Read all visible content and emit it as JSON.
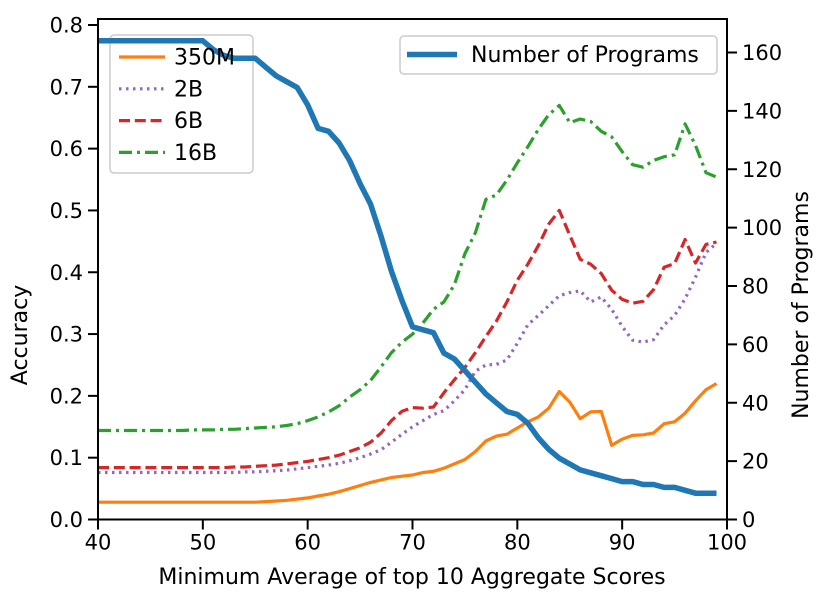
{
  "chart_data": {
    "type": "line",
    "title": "",
    "xlabel": "Minimum Average of top 10 Aggregate Scores",
    "ylabel_left": "Accuracy",
    "ylabel_right": "Number of Programs",
    "xlim": [
      40,
      100
    ],
    "ylim_left": [
      0.0,
      0.8
    ],
    "ylim_right": [
      0,
      160
    ],
    "grid": false,
    "x_ticks": [
      40,
      50,
      60,
      70,
      80,
      90,
      100
    ],
    "y_ticks_left": [
      "0.0",
      "0.1",
      "0.2",
      "0.3",
      "0.4",
      "0.5",
      "0.6",
      "0.7",
      "0.8"
    ],
    "y_ticks_right": [
      0,
      20,
      40,
      60,
      80,
      100,
      120,
      140,
      160
    ],
    "axis_color_right": "#1f77b4",
    "legend_models_position": "upper left",
    "legend_programs_position": "upper right",
    "x": [
      40,
      41,
      42,
      43,
      44,
      45,
      46,
      47,
      48,
      49,
      50,
      51,
      52,
      53,
      54,
      55,
      56,
      57,
      58,
      59,
      60,
      61,
      62,
      63,
      64,
      65,
      66,
      67,
      68,
      69,
      70,
      71,
      72,
      73,
      74,
      75,
      76,
      77,
      78,
      79,
      80,
      81,
      82,
      83,
      84,
      85,
      86,
      87,
      88,
      89,
      90,
      91,
      92,
      93,
      94,
      95,
      96,
      97,
      98,
      99
    ],
    "series": [
      {
        "name": "350M",
        "color": "#ff7f0e",
        "style": "solid",
        "axis": "left",
        "linewidth": 3.2,
        "values": [
          0.028,
          0.028,
          0.028,
          0.028,
          0.028,
          0.028,
          0.028,
          0.028,
          0.028,
          0.028,
          0.028,
          0.028,
          0.028,
          0.028,
          0.028,
          0.028,
          0.029,
          0.03,
          0.031,
          0.033,
          0.035,
          0.038,
          0.041,
          0.045,
          0.05,
          0.055,
          0.06,
          0.064,
          0.068,
          0.07,
          0.072,
          0.076,
          0.078,
          0.083,
          0.09,
          0.097,
          0.11,
          0.127,
          0.135,
          0.138,
          0.148,
          0.158,
          0.166,
          0.18,
          0.207,
          0.19,
          0.163,
          0.174,
          0.175,
          0.12,
          0.13,
          0.136,
          0.137,
          0.14,
          0.155,
          0.158,
          0.172,
          0.192,
          0.21,
          0.22
        ]
      },
      {
        "name": "2B",
        "color": "#9467bd",
        "style": "dotted",
        "axis": "left",
        "linewidth": 3.2,
        "values": [
          0.076,
          0.076,
          0.076,
          0.076,
          0.076,
          0.076,
          0.076,
          0.076,
          0.076,
          0.076,
          0.076,
          0.076,
          0.076,
          0.076,
          0.077,
          0.077,
          0.078,
          0.079,
          0.08,
          0.082,
          0.084,
          0.086,
          0.088,
          0.091,
          0.095,
          0.1,
          0.106,
          0.113,
          0.125,
          0.138,
          0.15,
          0.16,
          0.17,
          0.176,
          0.192,
          0.21,
          0.24,
          0.25,
          0.251,
          0.258,
          0.285,
          0.315,
          0.33,
          0.346,
          0.362,
          0.367,
          0.37,
          0.352,
          0.36,
          0.34,
          0.312,
          0.29,
          0.287,
          0.291,
          0.315,
          0.33,
          0.357,
          0.392,
          0.432,
          0.447
        ]
      },
      {
        "name": "6B",
        "color": "#d62728",
        "style": "dashed",
        "axis": "left",
        "linewidth": 3.2,
        "values": [
          0.084,
          0.084,
          0.084,
          0.084,
          0.084,
          0.084,
          0.084,
          0.084,
          0.084,
          0.084,
          0.084,
          0.084,
          0.084,
          0.085,
          0.085,
          0.086,
          0.087,
          0.088,
          0.09,
          0.092,
          0.094,
          0.097,
          0.1,
          0.104,
          0.11,
          0.116,
          0.125,
          0.14,
          0.16,
          0.175,
          0.181,
          0.18,
          0.182,
          0.205,
          0.226,
          0.246,
          0.27,
          0.296,
          0.321,
          0.352,
          0.387,
          0.413,
          0.443,
          0.478,
          0.5,
          0.46,
          0.421,
          0.413,
          0.398,
          0.371,
          0.356,
          0.35,
          0.353,
          0.372,
          0.408,
          0.414,
          0.453,
          0.415,
          0.445,
          0.449
        ]
      },
      {
        "name": "16B",
        "color": "#2ca02c",
        "style": "dashdot",
        "axis": "left",
        "linewidth": 3.2,
        "values": [
          0.144,
          0.144,
          0.144,
          0.144,
          0.144,
          0.144,
          0.144,
          0.144,
          0.144,
          0.145,
          0.145,
          0.145,
          0.146,
          0.146,
          0.147,
          0.148,
          0.149,
          0.15,
          0.152,
          0.155,
          0.16,
          0.166,
          0.174,
          0.184,
          0.198,
          0.21,
          0.225,
          0.247,
          0.27,
          0.287,
          0.3,
          0.318,
          0.34,
          0.352,
          0.38,
          0.43,
          0.464,
          0.518,
          0.525,
          0.549,
          0.577,
          0.603,
          0.631,
          0.655,
          0.67,
          0.642,
          0.648,
          0.644,
          0.628,
          0.619,
          0.595,
          0.574,
          0.57,
          0.581,
          0.587,
          0.59,
          0.64,
          0.605,
          0.561,
          0.554
        ]
      },
      {
        "name": "Number of Programs",
        "color": "#1f77b4",
        "style": "solid",
        "axis": "right",
        "linewidth": 5.5,
        "values": [
          164,
          164,
          164,
          164,
          164,
          164,
          164,
          164,
          164,
          164,
          164,
          161,
          159,
          158,
          158,
          158,
          155,
          152,
          150,
          148,
          142,
          134,
          133,
          129,
          123,
          115,
          108,
          97,
          85,
          75,
          66,
          65,
          64,
          57,
          55,
          51,
          47,
          43,
          40,
          37,
          36,
          33,
          28,
          24,
          21,
          19,
          17,
          16,
          15,
          14,
          13,
          13,
          12,
          12,
          11,
          11,
          10,
          9,
          9,
          9
        ]
      }
    ]
  }
}
